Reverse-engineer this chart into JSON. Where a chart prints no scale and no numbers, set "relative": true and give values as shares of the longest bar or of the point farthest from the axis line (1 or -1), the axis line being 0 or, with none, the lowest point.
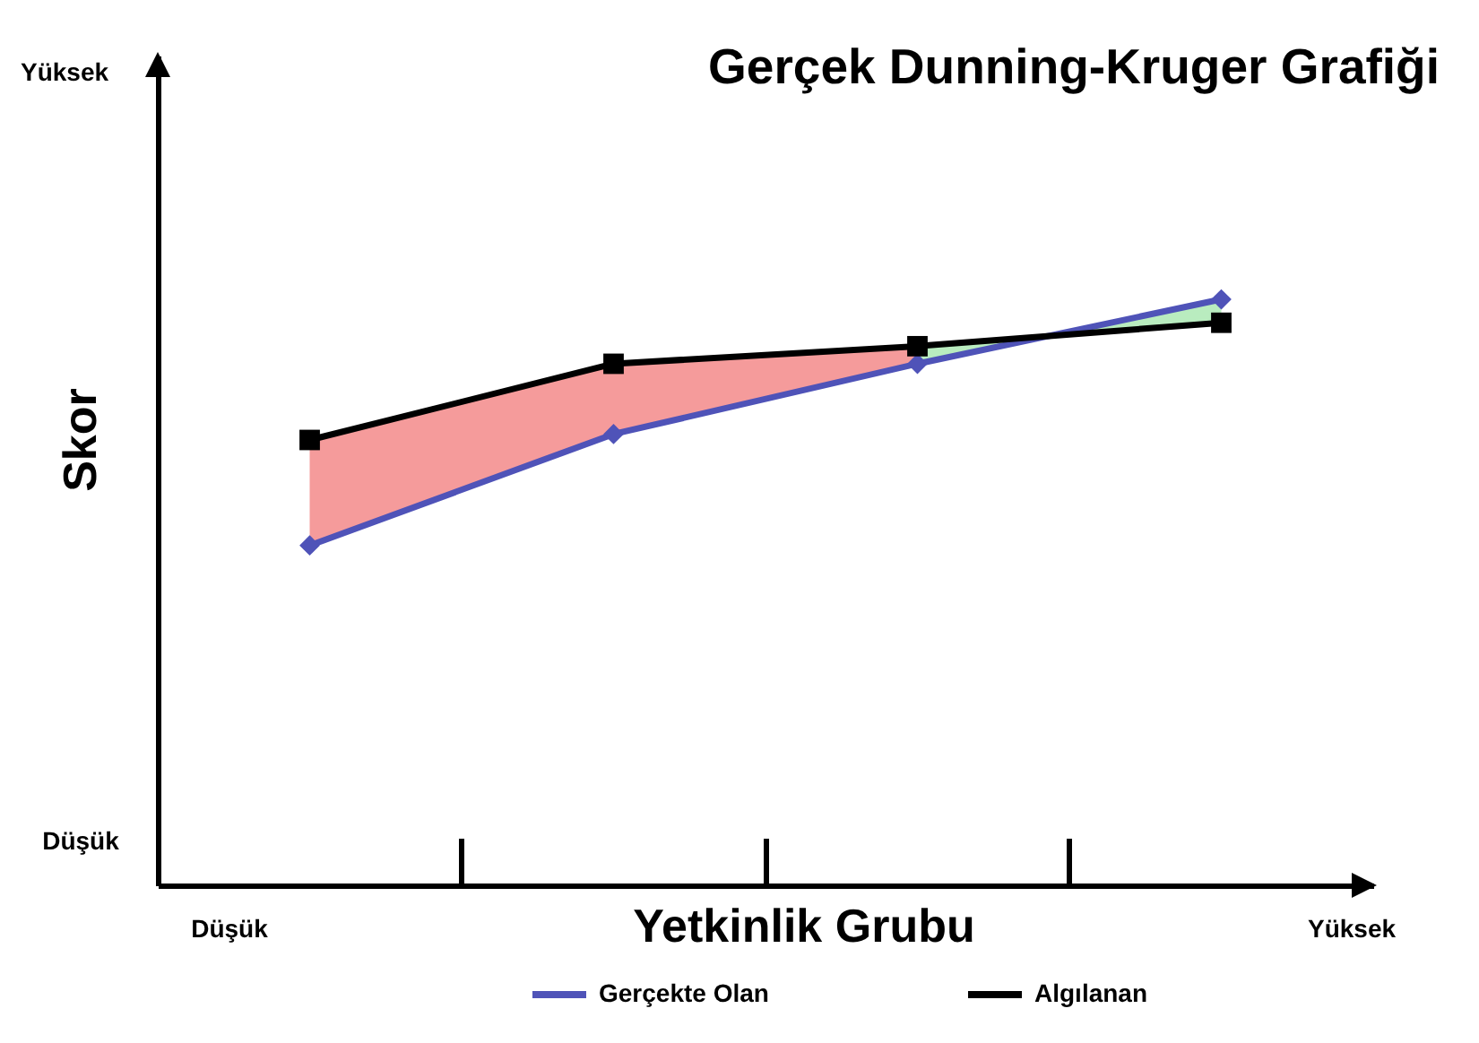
{
  "chart_data": {
    "type": "line",
    "title": "Gerçek Dunning-Kruger Grafiği",
    "xlabel": "Yetkinlik Grubu",
    "ylabel": "Skor",
    "categories": [
      null,
      null,
      null,
      null
    ],
    "relative": true,
    "series": [
      {
        "name": "Gerçekte Olan",
        "color": "#4f53b8",
        "marker": "diamond",
        "values": [
          0.58,
          0.77,
          0.89,
          1
        ]
      },
      {
        "name": "Algılanan",
        "color": "#000000",
        "marker": "square",
        "values": [
          0.76,
          0.89,
          0.92,
          0.96
        ]
      },
      {
        "type": "area",
        "color": "#f59b9b",
        "values": [
          null,
          null,
          null,
          null
        ],
        "lower": [
          0.58,
          0.77,
          0.89,
          null
        ],
        "upper": [
          0.76,
          0.89,
          0.92,
          null
        ]
      },
      {
        "type": "area",
        "color": "#b9ecbf",
        "values": [
          null,
          null,
          null,
          null
        ],
        "lower": [
          null,
          null,
          0.92,
          0.96
        ],
        "upper": [
          null,
          null,
          0.89,
          1
        ]
      }
    ],
    "legend": "bottom",
    "annotations": [
      "Yüksek",
      "Düşük",
      "Düşük",
      "Yüksek"
    ]
  }
}
